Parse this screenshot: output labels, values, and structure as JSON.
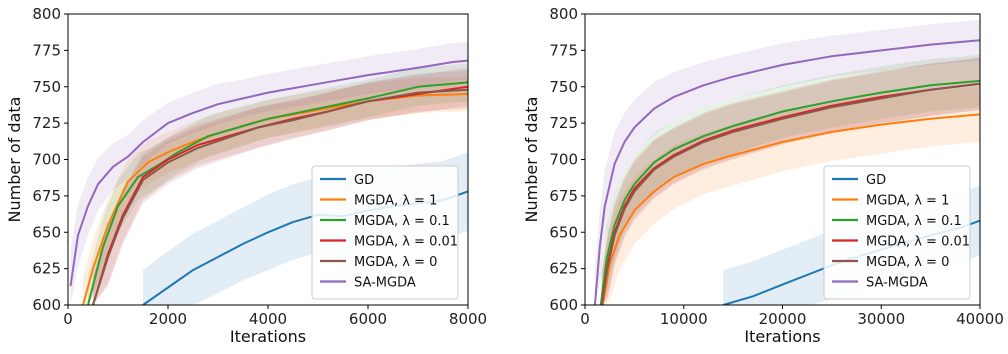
{
  "chart_data": [
    {
      "type": "line",
      "title": "",
      "xlabel": "Iterations",
      "ylabel": "Number of data",
      "xlim": [
        0,
        8000
      ],
      "ylim": [
        600,
        800
      ],
      "xticks": [
        0,
        2000,
        4000,
        6000,
        8000
      ],
      "yticks": [
        600,
        625,
        650,
        675,
        700,
        725,
        750,
        775,
        800
      ],
      "grid": false,
      "legend_position": "lower-right",
      "shaded_bands": true,
      "series": [
        {
          "name": "GD",
          "color": "#1f77b4",
          "x": [
            1500,
            2000,
            2500,
            3000,
            3500,
            4000,
            4500,
            5000,
            5500,
            6000,
            6500,
            7000,
            7500,
            8000
          ],
          "y": [
            600,
            612,
            624,
            633,
            642,
            650,
            657,
            662,
            661,
            665,
            668,
            670,
            672,
            678
          ],
          "band": [
            24,
            25,
            25,
            25,
            25,
            26,
            26,
            26,
            26,
            27,
            27,
            27,
            27,
            27
          ]
        },
        {
          "name": "MGDA, λ = 1",
          "color": "#ff7f0e",
          "x": [
            300,
            500,
            800,
            1200,
            1600,
            2000,
            2500,
            3000,
            3500,
            4000,
            5000,
            6000,
            7000,
            8000
          ],
          "y": [
            600,
            625,
            655,
            685,
            698,
            705,
            712,
            718,
            723,
            728,
            734,
            740,
            744,
            745
          ],
          "band": [
            20,
            20,
            18,
            15,
            15,
            14,
            14,
            14,
            13,
            13,
            13,
            12,
            12,
            12
          ]
        },
        {
          "name": "MGDA, λ = 0.1",
          "color": "#2ca02c",
          "x": [
            400,
            700,
            1000,
            1400,
            1800,
            2200,
            2800,
            3400,
            4000,
            5000,
            6000,
            7000,
            8000
          ],
          "y": [
            600,
            640,
            668,
            688,
            696,
            705,
            716,
            722,
            728,
            735,
            742,
            750,
            753
          ],
          "band": [
            20,
            20,
            18,
            16,
            15,
            14,
            14,
            14,
            13,
            13,
            13,
            13,
            13
          ]
        },
        {
          "name": "MGDA, λ = 0.01",
          "color": "#d62728",
          "x": [
            500,
            800,
            1100,
            1500,
            2000,
            2600,
            3200,
            3800,
            4500,
            5200,
            6000,
            7000,
            8000
          ],
          "y": [
            600,
            635,
            662,
            688,
            700,
            710,
            716,
            722,
            728,
            733,
            740,
            745,
            750
          ],
          "band": [
            20,
            20,
            18,
            16,
            15,
            14,
            14,
            14,
            13,
            13,
            13,
            13,
            13
          ]
        },
        {
          "name": "MGDA, λ = 0",
          "color": "#8c564b",
          "x": [
            500,
            800,
            1100,
            1500,
            2000,
            2600,
            3200,
            3800,
            4500,
            5200,
            6000,
            7000,
            8000
          ],
          "y": [
            600,
            633,
            660,
            686,
            698,
            708,
            715,
            722,
            727,
            733,
            740,
            746,
            748
          ],
          "band": [
            20,
            20,
            18,
            16,
            15,
            14,
            14,
            14,
            13,
            13,
            13,
            13,
            13
          ]
        },
        {
          "name": "SA-MGDA",
          "color": "#9467bd",
          "x": [
            50,
            200,
            400,
            600,
            900,
            1200,
            1500,
            2000,
            2500,
            3000,
            3500,
            4000,
            5000,
            6000,
            7000,
            7700,
            8000
          ],
          "y": [
            613,
            648,
            668,
            683,
            695,
            702,
            712,
            725,
            732,
            738,
            742,
            746,
            752,
            758,
            763,
            767,
            768
          ],
          "band": [
            25,
            22,
            20,
            18,
            16,
            15,
            15,
            14,
            14,
            14,
            13,
            13,
            13,
            13,
            13,
            13,
            13
          ]
        }
      ]
    },
    {
      "type": "line",
      "title": "",
      "xlabel": "Iterations",
      "ylabel": "Number of data",
      "xlim": [
        0,
        40000
      ],
      "ylim": [
        600,
        800
      ],
      "xticks": [
        0,
        10000,
        20000,
        30000,
        40000
      ],
      "yticks": [
        600,
        625,
        650,
        675,
        700,
        725,
        750,
        775,
        800
      ],
      "grid": false,
      "legend_position": "lower-right",
      "shaded_bands": true,
      "series": [
        {
          "name": "GD",
          "color": "#1f77b4",
          "x": [
            14000,
            17000,
            20000,
            23000,
            26000,
            29000,
            32000,
            35000,
            38000,
            40000
          ],
          "y": [
            600,
            606,
            614,
            622,
            630,
            636,
            642,
            648,
            653,
            658
          ],
          "band": [
            24,
            24,
            24,
            24,
            24,
            24,
            24,
            24,
            24,
            24
          ]
        },
        {
          "name": "MGDA, λ = 1",
          "color": "#ff7f0e",
          "x": [
            1800,
            2500,
            3500,
            5000,
            7000,
            9000,
            12000,
            15000,
            20000,
            25000,
            30000,
            35000,
            40000
          ],
          "y": [
            600,
            628,
            648,
            665,
            678,
            688,
            697,
            703,
            712,
            719,
            724,
            728,
            731
          ],
          "band": [
            25,
            25,
            24,
            23,
            22,
            22,
            21,
            21,
            20,
            20,
            20,
            19,
            19
          ]
        },
        {
          "name": "MGDA, λ = 0.1",
          "color": "#2ca02c",
          "x": [
            1600,
            2200,
            3000,
            4000,
            5000,
            7000,
            9000,
            12000,
            15000,
            20000,
            25000,
            30000,
            35000,
            40000
          ],
          "y": [
            600,
            632,
            655,
            672,
            683,
            698,
            707,
            716,
            723,
            733,
            740,
            746,
            751,
            754
          ],
          "band": [
            22,
            22,
            21,
            20,
            20,
            20,
            19,
            19,
            19,
            18,
            18,
            18,
            18,
            18
          ]
        },
        {
          "name": "MGDA, λ = 0.01",
          "color": "#d62728",
          "x": [
            1700,
            2300,
            3000,
            4000,
            5000,
            7000,
            9000,
            12000,
            15000,
            20000,
            25000,
            30000,
            35000,
            40000
          ],
          "y": [
            600,
            628,
            650,
            668,
            680,
            694,
            703,
            713,
            720,
            729,
            737,
            743,
            748,
            752
          ],
          "band": [
            22,
            22,
            21,
            20,
            20,
            20,
            19,
            19,
            19,
            18,
            18,
            18,
            18,
            18
          ]
        },
        {
          "name": "MGDA, λ = 0",
          "color": "#8c564b",
          "x": [
            1700,
            2300,
            3000,
            4000,
            5000,
            7000,
            9000,
            12000,
            15000,
            20000,
            25000,
            30000,
            35000,
            40000
          ],
          "y": [
            600,
            626,
            648,
            666,
            678,
            693,
            702,
            712,
            719,
            728,
            736,
            742,
            748,
            752
          ],
          "band": [
            22,
            22,
            21,
            20,
            20,
            20,
            19,
            19,
            19,
            18,
            18,
            18,
            18,
            18
          ]
        },
        {
          "name": "SA-MGDA",
          "color": "#9467bd",
          "x": [
            1000,
            1500,
            2000,
            3000,
            4000,
            5000,
            7000,
            9000,
            12000,
            15000,
            20000,
            25000,
            30000,
            35000,
            40000
          ],
          "y": [
            600,
            640,
            668,
            697,
            712,
            722,
            735,
            743,
            751,
            757,
            765,
            771,
            775,
            779,
            782
          ],
          "band": [
            25,
            25,
            24,
            22,
            20,
            19,
            18,
            17,
            16,
            15,
            15,
            14,
            14,
            14,
            14
          ]
        }
      ]
    }
  ]
}
